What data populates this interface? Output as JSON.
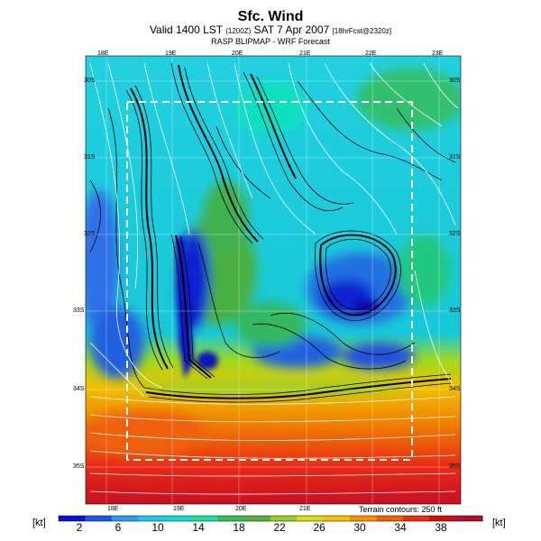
{
  "header": {
    "title": "Sfc. Wind",
    "subtitle_main": "Valid 1400 LST",
    "subtitle_utc": "(1200Z)",
    "subtitle_date": "SAT 7 Apr 2007",
    "subtitle_fcst": "[18hrFcst@2320z]",
    "source": "RASP BLIPMAP - WRF Forecast"
  },
  "map": {
    "lon_labels_top": [
      "18E",
      "19E",
      "20E",
      "21E",
      "22E",
      "23E"
    ],
    "lon_labels_bottom": [
      "18E",
      "19E",
      "20E",
      "21E"
    ],
    "lat_labels_left": [
      "30S",
      "31S",
      "32S",
      "33S",
      "34S",
      "35S"
    ],
    "lat_labels_right": [
      "30S",
      "31S",
      "32S",
      "33S",
      "34S",
      "35S"
    ],
    "terrain_note": "Terrain contours: 250 ft"
  },
  "colorbar": {
    "unit_left": "[kt]",
    "unit_right": "[kt]",
    "labels": [
      "2",
      "6",
      "10",
      "14",
      "18",
      "22",
      "26",
      "30",
      "34",
      "38"
    ],
    "colors": [
      "#0a10d8",
      "#1858e8",
      "#2a9af2",
      "#20c8f0",
      "#10dcd0",
      "#20e0a0",
      "#30c060",
      "#58b040",
      "#98cc28",
      "#d8e010",
      "#f8c000",
      "#f89000",
      "#f06008",
      "#e83010",
      "#d01010",
      "#b01030"
    ]
  }
}
